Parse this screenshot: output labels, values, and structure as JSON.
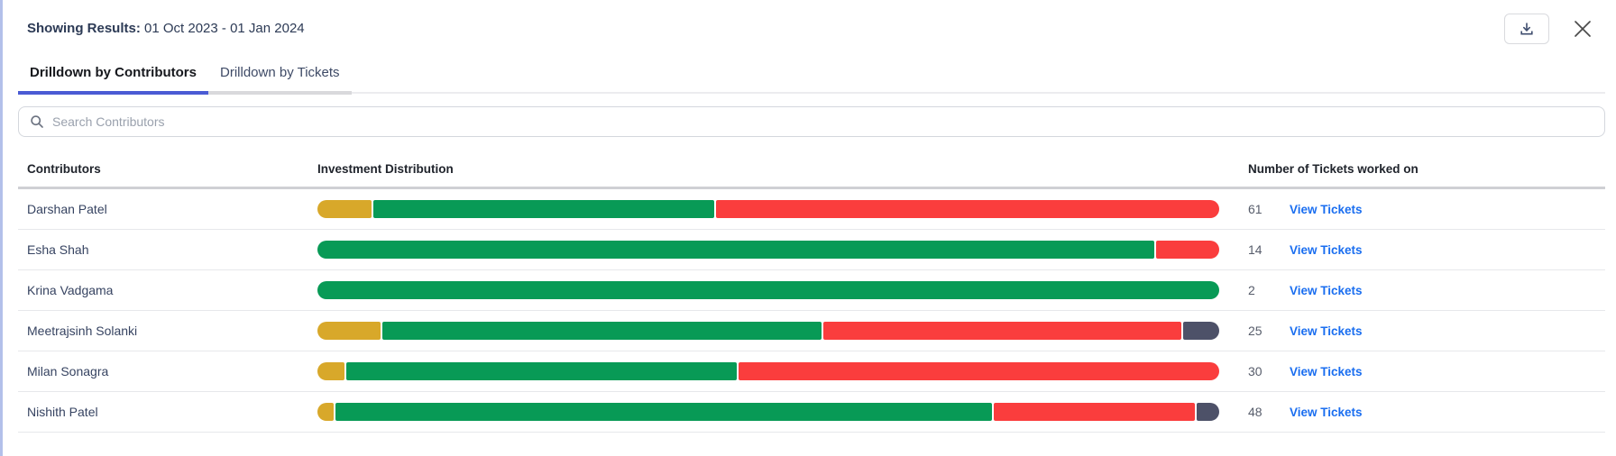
{
  "panel": {
    "results_label": "Showing Results:",
    "results_value": "01 Oct 2023 - 01 Jan 2024"
  },
  "toolbar": {
    "download_icon": "download-icon",
    "close_icon": "close-icon"
  },
  "tabs": [
    {
      "label": "Drilldown by Contributors",
      "active": true
    },
    {
      "label": "Drilldown by Tickets",
      "active": false
    }
  ],
  "search": {
    "placeholder": "Search Contributors",
    "icon": "search-icon"
  },
  "table": {
    "headers": {
      "contributors": "Contributors",
      "distribution": "Investment Distribution",
      "tickets": "Number of Tickets worked on"
    },
    "link_label": "View Tickets",
    "rows": [
      {
        "name": "Darshan Patel",
        "tickets": "61",
        "segments": [
          {
            "color": "yellow",
            "pct": 6
          },
          {
            "color": "green",
            "pct": 38
          },
          {
            "color": "red",
            "pct": 56
          }
        ]
      },
      {
        "name": "Esha Shah",
        "tickets": "14",
        "segments": [
          {
            "color": "green",
            "pct": 93
          },
          {
            "color": "red",
            "pct": 7
          }
        ]
      },
      {
        "name": "Krina Vadgama",
        "tickets": "2",
        "segments": [
          {
            "color": "green",
            "pct": 100
          }
        ]
      },
      {
        "name": "Meetrajsinh Solanki",
        "tickets": "25",
        "segments": [
          {
            "color": "yellow",
            "pct": 7
          },
          {
            "color": "green",
            "pct": 49
          },
          {
            "color": "red",
            "pct": 40
          },
          {
            "color": "slate",
            "pct": 4
          }
        ]
      },
      {
        "name": "Milan Sonagra",
        "tickets": "30",
        "segments": [
          {
            "color": "yellow",
            "pct": 3
          },
          {
            "color": "green",
            "pct": 43.5
          },
          {
            "color": "red",
            "pct": 53.5
          }
        ]
      },
      {
        "name": "Nishith Patel",
        "tickets": "48",
        "segments": [
          {
            "color": "yellow",
            "pct": 1.8
          },
          {
            "color": "green",
            "pct": 73.2
          },
          {
            "color": "red",
            "pct": 22.5
          },
          {
            "color": "slate",
            "pct": 2.5
          }
        ]
      }
    ]
  },
  "colors": {
    "yellow": "#d8a82a",
    "green": "#089a56",
    "red": "#fa3d3d",
    "slate": "#4d5168",
    "link": "#1a6ef0",
    "tab_active": "#4a5bd4",
    "left_border": "#b3c0ea"
  }
}
